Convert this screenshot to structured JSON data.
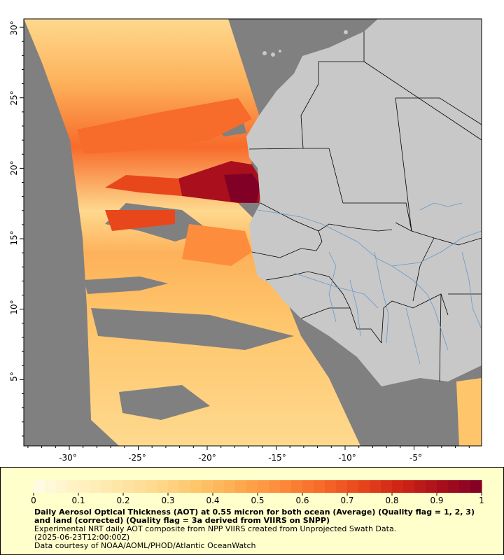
{
  "map": {
    "x_ticks": [
      "-30°",
      "-25°",
      "-20°",
      "-15°",
      "-10°",
      "-5°"
    ],
    "y_ticks": [
      "30°",
      "25°",
      "20°",
      "15°",
      "10°",
      "5°"
    ],
    "extent": {
      "lon": [
        -33.3,
        -0.1
      ],
      "lat": [
        0.3,
        30.6
      ]
    },
    "colors": {
      "no_data": "#808080",
      "land": "#c8c8c8",
      "rivers": "#6699cc",
      "borders": "#000000"
    }
  },
  "legend": {
    "colorbar_ticks": [
      "0",
      "0.1",
      "0.2",
      "0.3",
      "0.4",
      "0.5",
      "0.6",
      "0.7",
      "0.8",
      "0.9",
      "1"
    ],
    "range": [
      0,
      1
    ],
    "palette": [
      "#fffbe6",
      "#fff3c4",
      "#fee7a8",
      "#fed98e",
      "#fec56b",
      "#feab4f",
      "#fd8d3c",
      "#f76b2b",
      "#e8471c",
      "#cf2416",
      "#a90f1c",
      "#800026"
    ],
    "title": "Daily Aerosol Optical Thickness (AOT) at 0.55 micron for both ocean (Average) (Quality flag = 1, 2, 3) and land (corrected) (Quality flag = 3a derived from VIIRS on SNPP)",
    "line1": "Experimental NRT daily AOT composite from NPP VIIRS created from Unprojected Swath Data.",
    "line2": "(2025-06-23T12:00:00Z)",
    "line3": "Data courtesy of NOAA/AOML/PHOD/Atlantic OceanWatch"
  }
}
